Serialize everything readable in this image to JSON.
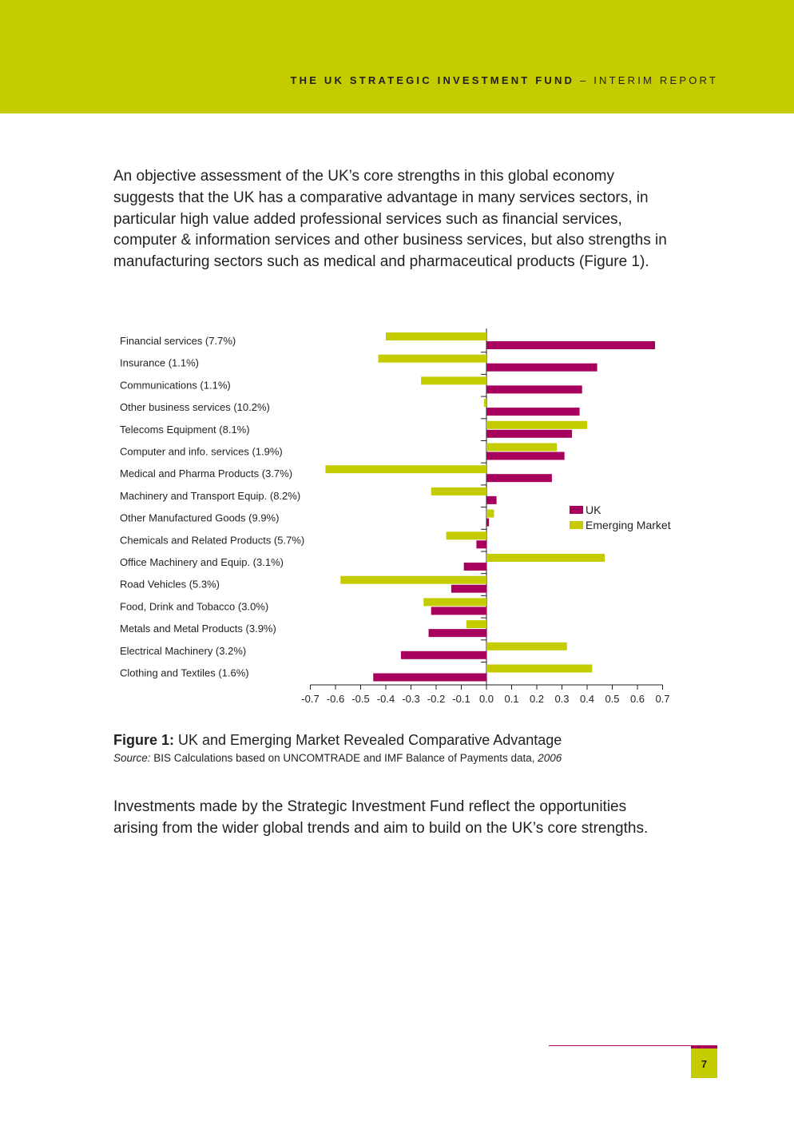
{
  "header": {
    "title_bold": "THE UK STRATEGIC INVESTMENT FUND",
    "title_rest": " – INTERIM REPORT",
    "color": "#c4cc00"
  },
  "body": {
    "paragraph1": "An objective assessment of the UK’s core strengths in this global economy suggests that the UK has a comparative advantage in many services sectors, in particular high value added professional services such as financial services, computer & information services and other business services, but also strengths in manufacturing sectors such as medical and pharmaceutical products (Figure 1).",
    "paragraph2": "Investments made by the Strategic Investment Fund reflect the opportunities arising from the wider global trends and aim to build on the UK’s core strengths."
  },
  "figure": {
    "label": "Figure 1:",
    "title": " UK and Emerging Market Revealed Comparative Advantage",
    "source_label": "Source:",
    "source_text": " BIS Calculations based on UNCOMTRADE and IMF Balance of Payments data, ",
    "source_year": "2006"
  },
  "chart_data": {
    "type": "bar",
    "orientation": "horizontal",
    "categories": [
      "Financial services (7.7%)",
      "Insurance (1.1%)",
      "Communications (1.1%)",
      "Other business services (10.2%)",
      "Telecoms Equipment (8.1%)",
      "Computer and info. services (1.9%)",
      "Medical and Pharma Products (3.7%)",
      "Machinery and Transport Equip. (8.2%)",
      "Other Manufactured Goods (9.9%)",
      "Chemicals and Related Products (5.7%)",
      "Office Machinery and Equip. (3.1%)",
      "Road Vehicles (5.3%)",
      "Food, Drink and Tobacco (3.0%)",
      "Metals and Metal Products (3.9%)",
      "Electrical Machinery (3.2%)",
      "Clothing and Textiles (1.6%)"
    ],
    "series": [
      {
        "name": "UK",
        "color": "#a8005d",
        "values": [
          0.67,
          0.44,
          0.38,
          0.37,
          0.34,
          0.31,
          0.26,
          0.04,
          0.01,
          -0.04,
          -0.09,
          -0.14,
          -0.22,
          -0.23,
          -0.34,
          -0.45
        ]
      },
      {
        "name": "Emerging Market",
        "color": "#c4cc00",
        "values": [
          -0.4,
          -0.43,
          -0.26,
          -0.01,
          0.4,
          0.28,
          -0.64,
          -0.22,
          0.03,
          -0.16,
          0.47,
          -0.58,
          -0.25,
          -0.08,
          0.32,
          0.42
        ]
      }
    ],
    "xlim": [
      -0.7,
      0.7
    ],
    "xticks": [
      "-0.7",
      "-0.6",
      "-0.5",
      "-0.4",
      "-0.3",
      "-0.2",
      "-0.1",
      "0.0",
      "0.1",
      "0.2",
      "0.3",
      "0.4",
      "0.5",
      "0.6",
      "0.7"
    ],
    "legend_position": "right",
    "grid": false
  },
  "footer": {
    "page_number": "7"
  }
}
